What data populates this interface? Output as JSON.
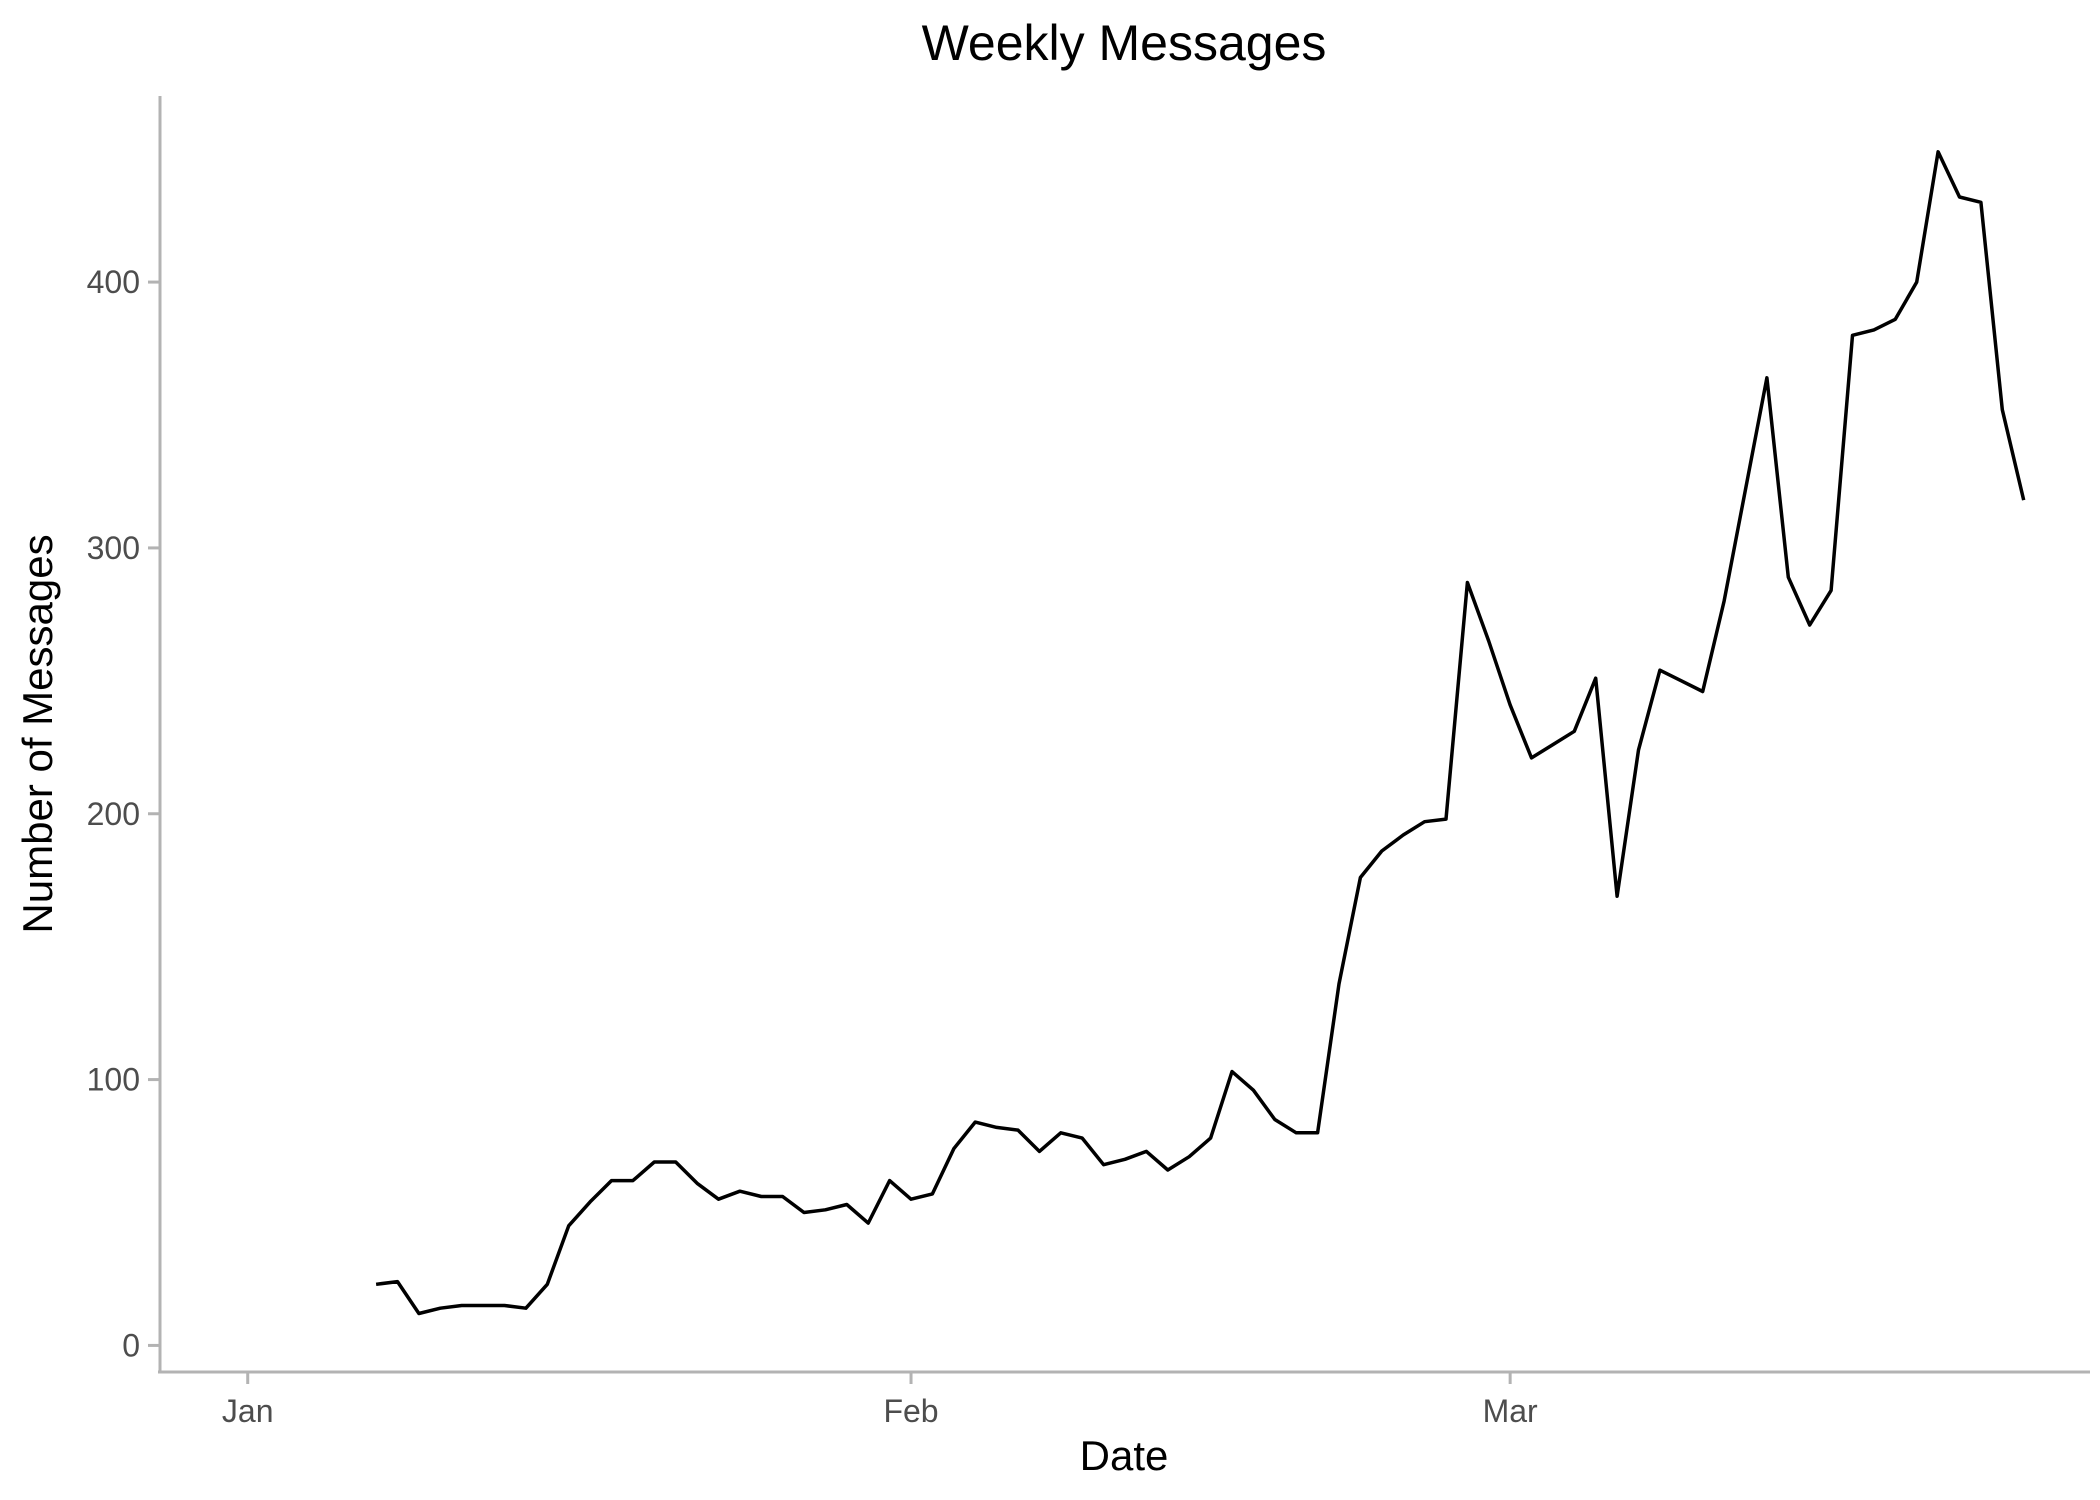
{
  "chart_data": {
    "type": "line",
    "title": "Weekly Messages",
    "xlabel": "Date",
    "ylabel": "Number of Messages",
    "x_unit": "days since Jan 1",
    "x_ticks": [
      {
        "label": "Jan",
        "value": 0
      },
      {
        "label": "Feb",
        "value": 31
      },
      {
        "label": "Mar",
        "value": 59
      }
    ],
    "y_ticks": [
      0,
      100,
      200,
      300,
      400
    ],
    "xlim": [
      -4.1,
      86.1
    ],
    "ylim": [
      -10,
      470
    ],
    "grid": false,
    "legend": "none",
    "series": [
      {
        "name": "Weekly Messages",
        "color": "#000000",
        "x": [
          6,
          7,
          8,
          9,
          10,
          11,
          12,
          13,
          14,
          15,
          16,
          17,
          18,
          19,
          20,
          21,
          22,
          23,
          24,
          25,
          26,
          27,
          28,
          29,
          30,
          31,
          32,
          33,
          34,
          35,
          36,
          37,
          38,
          39,
          40,
          41,
          42,
          43,
          44,
          45,
          46,
          47,
          48,
          49,
          50,
          51,
          52,
          53,
          54,
          55,
          56,
          57,
          58,
          59,
          60,
          61,
          62,
          63,
          64,
          65,
          66,
          67,
          68,
          69,
          70,
          71,
          72,
          73,
          74,
          75,
          76,
          77,
          78,
          79,
          80,
          81,
          82,
          83
        ],
        "y": [
          23,
          24,
          12,
          14,
          15,
          15,
          15,
          14,
          23,
          45,
          54,
          62,
          62,
          69,
          69,
          61,
          55,
          58,
          56,
          56,
          50,
          51,
          53,
          46,
          62,
          55,
          57,
          74,
          84,
          82,
          81,
          73,
          80,
          78,
          68,
          70,
          73,
          66,
          71,
          78,
          103,
          96,
          85,
          80,
          80,
          136,
          176,
          186,
          192,
          197,
          198,
          287,
          265,
          241,
          221,
          226,
          231,
          251,
          169,
          224,
          254,
          250,
          246,
          280,
          322,
          364,
          289,
          271,
          284,
          380,
          382,
          386,
          400,
          449,
          432,
          430,
          352,
          318
        ]
      }
    ]
  }
}
